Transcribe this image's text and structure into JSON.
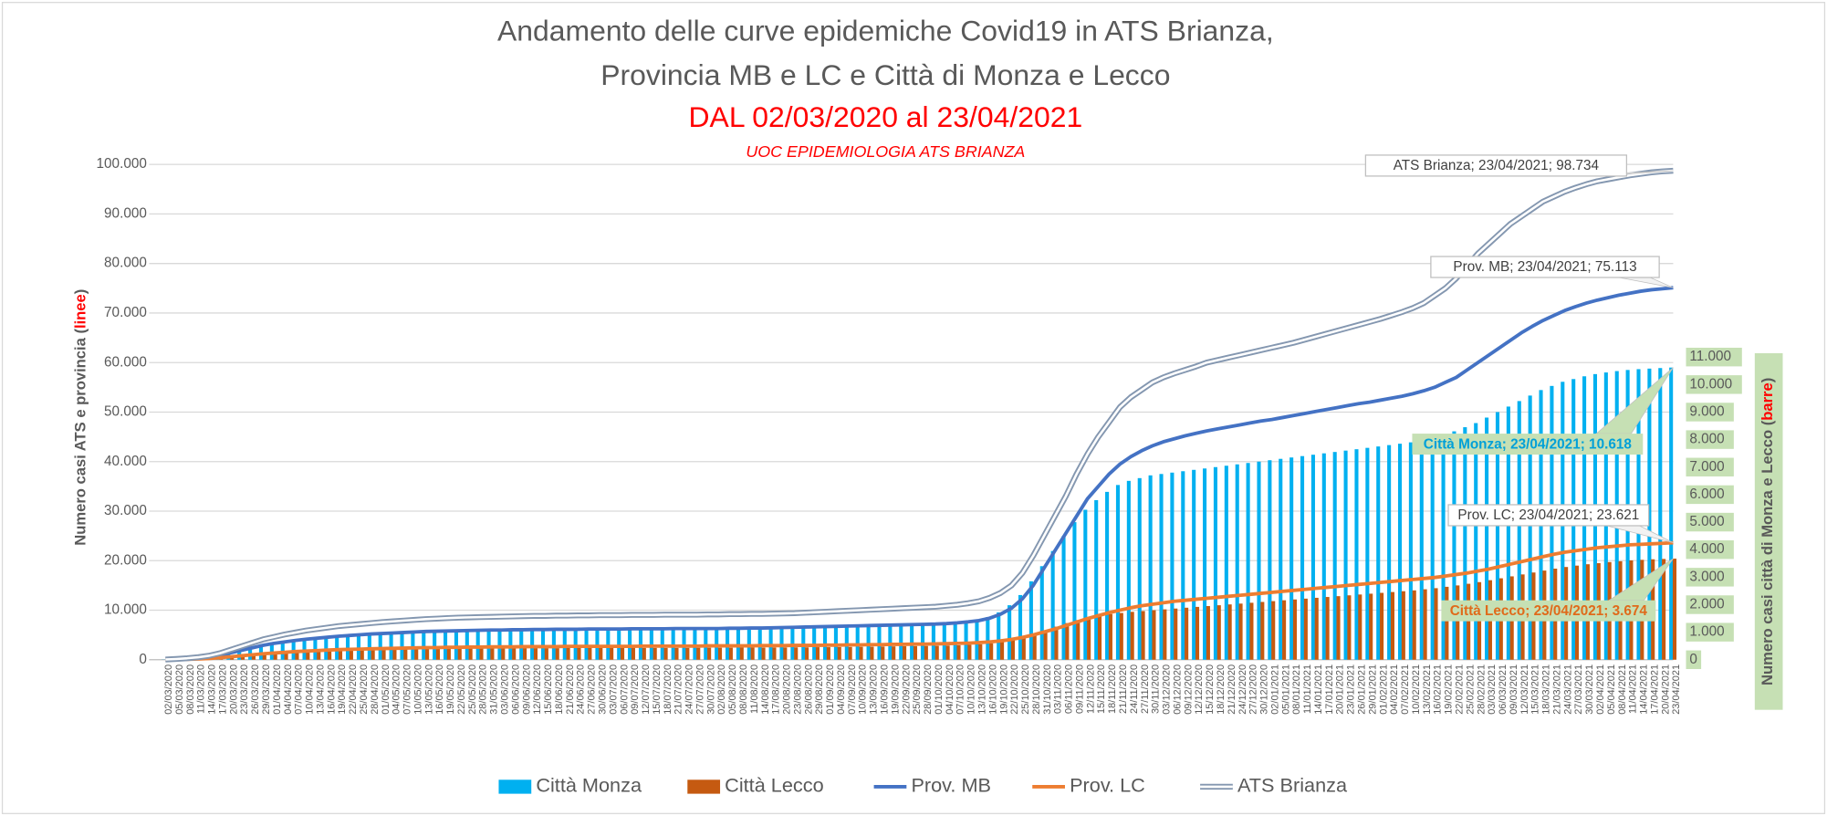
{
  "chart_data": {
    "type": "combo",
    "title": [
      "Andamento delle curve epidemiche Covid19 in ATS Brianza,",
      "Provincia MB e LC e Città di Monza e Lecco",
      "DAL 02/03/2020 al 23/04/2021"
    ],
    "subtitle": "UOC EPIDEMIOLOGIA ATS BRIANZA",
    "ylabel": [
      "Numero casi ATS e  provincia (",
      "linee",
      ")"
    ],
    "y2label": [
      "Numero casi città di Monza e Lecco (",
      "barre",
      ")"
    ],
    "categories": [
      "02/03/2020",
      "05/03/2020",
      "08/03/2020",
      "11/03/2020",
      "14/03/2020",
      "17/03/2020",
      "20/03/2020",
      "23/03/2020",
      "26/03/2020",
      "29/03/2020",
      "01/04/2020",
      "04/04/2020",
      "07/04/2020",
      "10/04/2020",
      "13/04/2020",
      "16/04/2020",
      "19/04/2020",
      "22/04/2020",
      "25/04/2020",
      "28/04/2020",
      "01/05/2020",
      "04/05/2020",
      "07/05/2020",
      "10/05/2020",
      "13/05/2020",
      "16/05/2020",
      "19/05/2020",
      "22/05/2020",
      "25/05/2020",
      "28/05/2020",
      "31/05/2020",
      "03/06/2020",
      "06/06/2020",
      "09/06/2020",
      "12/06/2020",
      "15/06/2020",
      "18/06/2020",
      "21/06/2020",
      "24/06/2020",
      "27/06/2020",
      "30/06/2020",
      "03/07/2020",
      "06/07/2020",
      "09/07/2020",
      "12/07/2020",
      "15/07/2020",
      "18/07/2020",
      "21/07/2020",
      "24/07/2020",
      "27/07/2020",
      "30/07/2020",
      "02/08/2020",
      "05/08/2020",
      "08/08/2020",
      "11/08/2020",
      "14/08/2020",
      "17/08/2020",
      "20/08/2020",
      "23/08/2020",
      "26/08/2020",
      "29/08/2020",
      "01/09/2020",
      "04/09/2020",
      "07/09/2020",
      "10/09/2020",
      "13/09/2020",
      "16/09/2020",
      "19/09/2020",
      "22/09/2020",
      "25/09/2020",
      "28/09/2020",
      "01/10/2020",
      "04/10/2020",
      "07/10/2020",
      "10/10/2020",
      "13/10/2020",
      "16/10/2020",
      "19/10/2020",
      "22/10/2020",
      "25/10/2020",
      "28/10/2020",
      "31/10/2020",
      "03/11/2020",
      "06/11/2020",
      "09/11/2020",
      "12/11/2020",
      "15/11/2020",
      "18/11/2020",
      "21/11/2020",
      "24/11/2020",
      "27/11/2020",
      "30/11/2020",
      "03/12/2020",
      "06/12/2020",
      "09/12/2020",
      "12/12/2020",
      "15/12/2020",
      "18/12/2020",
      "21/12/2020",
      "24/12/2020",
      "27/12/2020",
      "30/12/2020",
      "02/01/2021",
      "05/01/2021",
      "08/01/2021",
      "11/01/2021",
      "14/01/2021",
      "17/01/2021",
      "20/01/2021",
      "23/01/2021",
      "26/01/2021",
      "29/01/2021",
      "01/02/2021",
      "04/02/2021",
      "07/02/2021",
      "10/02/2021",
      "13/02/2021",
      "16/02/2021",
      "19/02/2021",
      "22/02/2021",
      "25/02/2021",
      "28/02/2021",
      "03/03/2021",
      "06/03/2021",
      "09/03/2021",
      "12/03/2021",
      "15/03/2021",
      "18/03/2021",
      "21/03/2021",
      "24/03/2021",
      "27/03/2021",
      "30/03/2021",
      "02/04/2021",
      "05/04/2021",
      "08/04/2021",
      "11/04/2021",
      "14/04/2021",
      "17/04/2021",
      "20/04/2021",
      "23/04/2021"
    ],
    "series": [
      {
        "name": "Città Monza",
        "type": "bar",
        "axis": "y2",
        "color": "#00b0f0",
        "values": [
          5,
          20,
          50,
          90,
          150,
          230,
          320,
          400,
          480,
          560,
          630,
          690,
          740,
          780,
          820,
          850,
          880,
          900,
          920,
          940,
          960,
          975,
          990,
          1000,
          1010,
          1020,
          1030,
          1040,
          1045,
          1050,
          1055,
          1060,
          1065,
          1070,
          1075,
          1080,
          1080,
          1085,
          1085,
          1090,
          1090,
          1090,
          1095,
          1095,
          1100,
          1100,
          1100,
          1100,
          1105,
          1105,
          1105,
          1105,
          1110,
          1110,
          1115,
          1120,
          1125,
          1130,
          1135,
          1140,
          1150,
          1160,
          1170,
          1180,
          1190,
          1200,
          1210,
          1220,
          1235,
          1250,
          1265,
          1280,
          1300,
          1330,
          1380,
          1450,
          1550,
          1720,
          1980,
          2350,
          2850,
          3400,
          3950,
          4500,
          5000,
          5450,
          5800,
          6100,
          6350,
          6500,
          6600,
          6700,
          6750,
          6800,
          6850,
          6900,
          6950,
          7000,
          7050,
          7100,
          7150,
          7200,
          7250,
          7300,
          7350,
          7400,
          7450,
          7500,
          7550,
          7600,
          7650,
          7700,
          7750,
          7800,
          7850,
          7900,
          7950,
          8050,
          8150,
          8300,
          8450,
          8600,
          8800,
          9000,
          9200,
          9400,
          9600,
          9800,
          9950,
          10100,
          10200,
          10300,
          10380,
          10440,
          10490,
          10530,
          10560,
          10580,
          10600,
          10618
        ]
      },
      {
        "name": "Città Lecco",
        "type": "bar",
        "axis": "y2",
        "color": "#c55a11",
        "values": [
          2,
          8,
          20,
          40,
          65,
          100,
          140,
          180,
          220,
          255,
          280,
          300,
          320,
          335,
          345,
          355,
          365,
          370,
          375,
          380,
          385,
          390,
          395,
          400,
          400,
          405,
          405,
          410,
          410,
          410,
          415,
          415,
          415,
          420,
          420,
          420,
          420,
          425,
          425,
          425,
          425,
          425,
          425,
          430,
          430,
          430,
          430,
          430,
          430,
          435,
          435,
          435,
          435,
          440,
          440,
          440,
          445,
          445,
          450,
          450,
          455,
          455,
          460,
          465,
          470,
          475,
          480,
          485,
          490,
          495,
          500,
          505,
          515,
          525,
          540,
          560,
          590,
          640,
          710,
          800,
          920,
          1060,
          1200,
          1330,
          1440,
          1530,
          1600,
          1660,
          1700,
          1740,
          1770,
          1800,
          1830,
          1860,
          1890,
          1920,
          1950,
          1980,
          2010,
          2040,
          2070,
          2100,
          2130,
          2160,
          2190,
          2220,
          2250,
          2280,
          2310,
          2340,
          2370,
          2400,
          2430,
          2460,
          2490,
          2520,
          2560,
          2600,
          2650,
          2700,
          2760,
          2820,
          2890,
          2960,
          3030,
          3100,
          3170,
          3240,
          3310,
          3370,
          3420,
          3470,
          3510,
          3550,
          3580,
          3610,
          3630,
          3650,
          3662,
          3674
        ]
      },
      {
        "name": "Prov. MB",
        "type": "line",
        "color": "#4472c4",
        "values": [
          30,
          100,
          200,
          350,
          550,
          900,
          1400,
          1900,
          2400,
          2900,
          3300,
          3600,
          3900,
          4150,
          4350,
          4550,
          4750,
          4900,
          5050,
          5200,
          5300,
          5400,
          5500,
          5600,
          5700,
          5750,
          5800,
          5850,
          5900,
          5950,
          6000,
          6000,
          6050,
          6050,
          6100,
          6100,
          6150,
          6150,
          6150,
          6200,
          6200,
          6200,
          6200,
          6250,
          6250,
          6250,
          6250,
          6300,
          6300,
          6300,
          6300,
          6300,
          6350,
          6350,
          6400,
          6400,
          6450,
          6500,
          6550,
          6600,
          6650,
          6700,
          6750,
          6800,
          6850,
          6900,
          6950,
          7000,
          7050,
          7100,
          7150,
          7200,
          7300,
          7450,
          7650,
          7900,
          8400,
          9200,
          10400,
          12300,
          15000,
          18500,
          22000,
          25500,
          29000,
          32500,
          35000,
          37500,
          39500,
          41000,
          42200,
          43200,
          44000,
          44600,
          45200,
          45700,
          46200,
          46600,
          47000,
          47400,
          47800,
          48200,
          48500,
          48900,
          49300,
          49700,
          50100,
          50500,
          50900,
          51300,
          51700,
          52000,
          52400,
          52800,
          53200,
          53700,
          54300,
          55000,
          56000,
          57000,
          58500,
          60000,
          61500,
          63000,
          64500,
          66000,
          67300,
          68500,
          69500,
          70500,
          71300,
          72000,
          72600,
          73100,
          73600,
          74000,
          74400,
          74700,
          74900,
          75113
        ]
      },
      {
        "name": "Prov. LC",
        "type": "line",
        "color": "#ed7d31",
        "values": [
          10,
          40,
          90,
          150,
          250,
          400,
          600,
          800,
          1000,
          1200,
          1350,
          1500,
          1650,
          1750,
          1850,
          1950,
          2050,
          2100,
          2150,
          2200,
          2250,
          2300,
          2350,
          2400,
          2450,
          2450,
          2500,
          2500,
          2550,
          2550,
          2600,
          2600,
          2600,
          2650,
          2650,
          2650,
          2650,
          2700,
          2700,
          2700,
          2700,
          2700,
          2700,
          2700,
          2750,
          2750,
          2750,
          2750,
          2750,
          2750,
          2800,
          2800,
          2800,
          2800,
          2800,
          2850,
          2850,
          2850,
          2900,
          2900,
          2900,
          2950,
          2950,
          3000,
          3000,
          3050,
          3050,
          3100,
          3100,
          3150,
          3150,
          3200,
          3250,
          3300,
          3350,
          3450,
          3600,
          3800,
          4100,
          4500,
          5000,
          5600,
          6200,
          6900,
          7600,
          8300,
          8900,
          9500,
          10000,
          10500,
          10900,
          11200,
          11500,
          11800,
          12000,
          12200,
          12400,
          12600,
          12800,
          13000,
          13200,
          13400,
          13600,
          13800,
          14000,
          14200,
          14400,
          14600,
          14800,
          15000,
          15200,
          15400,
          15600,
          15800,
          16000,
          16200,
          16400,
          16600,
          16900,
          17200,
          17500,
          17900,
          18300,
          18800,
          19300,
          19800,
          20300,
          20800,
          21300,
          21700,
          22000,
          22300,
          22600,
          22800,
          23000,
          23200,
          23300,
          23400,
          23500,
          23621
        ]
      },
      {
        "name": "ATS Brianza",
        "type": "double-line",
        "color": "#8497b0",
        "values": [
          50,
          150,
          300,
          500,
          800,
          1300,
          2000,
          2700,
          3400,
          4100,
          4600,
          5100,
          5500,
          5900,
          6200,
          6500,
          6800,
          7000,
          7200,
          7400,
          7600,
          7750,
          7900,
          8050,
          8200,
          8300,
          8400,
          8500,
          8550,
          8600,
          8650,
          8700,
          8750,
          8800,
          8850,
          8850,
          8900,
          8900,
          8950,
          8950,
          9000,
          9000,
          9000,
          9050,
          9050,
          9050,
          9100,
          9100,
          9100,
          9100,
          9150,
          9150,
          9200,
          9200,
          9250,
          9250,
          9300,
          9350,
          9400,
          9500,
          9600,
          9700,
          9800,
          9900,
          10000,
          10100,
          10200,
          10300,
          10400,
          10500,
          10600,
          10700,
          10900,
          11100,
          11400,
          11800,
          12500,
          13500,
          15000,
          17500,
          21000,
          25000,
          29000,
          33000,
          37500,
          41500,
          45000,
          48000,
          51000,
          53000,
          54500,
          56000,
          57000,
          57800,
          58500,
          59200,
          60000,
          60500,
          61000,
          61500,
          62000,
          62500,
          63000,
          63500,
          64000,
          64600,
          65200,
          65800,
          66400,
          67000,
          67600,
          68200,
          68800,
          69500,
          70200,
          71000,
          72000,
          73500,
          75000,
          77000,
          79500,
          82000,
          84000,
          86000,
          88000,
          89500,
          91000,
          92500,
          93500,
          94500,
          95300,
          96000,
          96600,
          97000,
          97400,
          97800,
          98100,
          98400,
          98600,
          98734
        ]
      }
    ],
    "annotations": [
      "ATS Brianza; 23/04/2021; 98.734",
      "Prov. MB; 23/04/2021; 75.113",
      "Città Monza; 23/04/2021; 10.618",
      "Prov. LC; 23/04/2021; 23.621",
      "Città Lecco; 23/04/2021; 3.674"
    ],
    "ylim": [
      0,
      100000
    ],
    "yticks": [
      0,
      {
        "value": 10000,
        "label": "10.000"
      },
      {
        "value": 20000,
        "label": "20.000"
      },
      {
        "value": 30000,
        "label": "30.000"
      },
      {
        "value": 40000,
        "label": "40.000"
      },
      {
        "value": 50000,
        "label": "50.000"
      },
      {
        "value": 60000,
        "label": "60.000"
      },
      {
        "value": 70000,
        "label": "70.000"
      },
      {
        "value": 80000,
        "label": "80.000"
      },
      {
        "value": 90000,
        "label": "90.000"
      },
      {
        "value": 100000,
        "label": "100.000"
      }
    ],
    "y2lim": [
      0,
      18000
    ],
    "y2ticks": [
      0,
      {
        "value": 1000,
        "label": "1.000"
      },
      {
        "value": 2000,
        "label": "2.000"
      },
      {
        "value": 3000,
        "label": "3.000"
      },
      {
        "value": 4000,
        "label": "4.000"
      },
      {
        "value": 5000,
        "label": "5.000"
      },
      {
        "value": 6000,
        "label": "6.000"
      },
      {
        "value": 7000,
        "label": "7.000"
      },
      {
        "value": 8000,
        "label": "8.000"
      },
      {
        "value": 9000,
        "label": "9.000"
      },
      {
        "value": 10000,
        "label": "10.000"
      },
      {
        "value": 11000,
        "label": "11.000"
      }
    ],
    "grid": true,
    "legend": "bottom"
  }
}
